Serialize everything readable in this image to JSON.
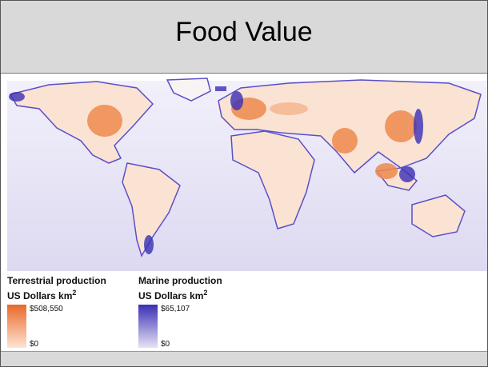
{
  "header": {
    "title": "Food Value"
  },
  "legends": [
    {
      "title": "Terrestrial production",
      "unit": "US Dollars km",
      "unit_sup": "2",
      "max_label": "$508,550",
      "min_label": "$0"
    },
    {
      "title": "Marine production",
      "unit": "US Dollars km",
      "unit_sup": "2",
      "max_label": "$65,107",
      "min_label": "$0"
    }
  ]
}
